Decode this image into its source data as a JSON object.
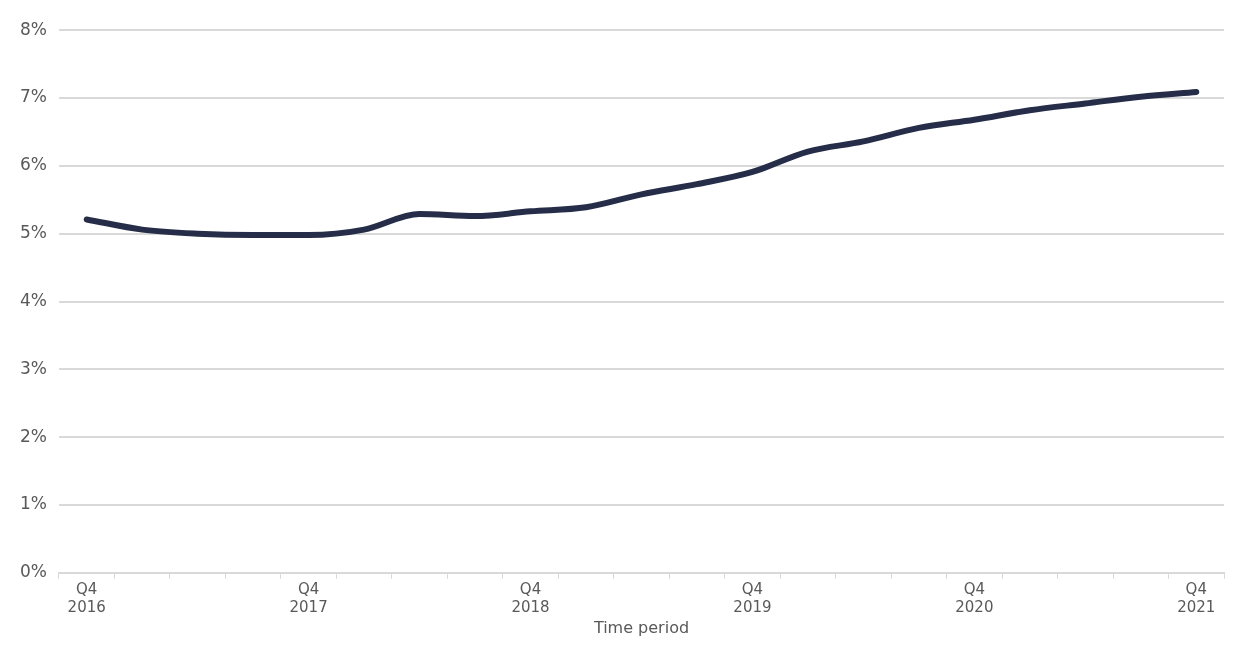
{
  "chart_data": {
    "type": "line",
    "xlabel": "Time period",
    "categories": [
      "Q4 2016",
      null,
      null,
      null,
      "Q4 2017",
      null,
      null,
      null,
      "Q4 2018",
      null,
      null,
      null,
      "Q4 2019",
      null,
      null,
      null,
      "Q4 2020",
      null,
      null,
      null,
      "Q4 2021"
    ],
    "series": [
      {
        "color": "#252d48",
        "values": [
          5.21,
          5.06,
          5.0,
          4.98,
          4.98,
          5.06,
          5.29,
          5.26,
          5.33,
          5.39,
          5.58,
          5.73,
          5.91,
          6.21,
          6.36,
          6.56,
          6.68,
          6.82,
          6.92,
          7.02,
          7.09
        ]
      }
    ],
    "ylim": [
      0,
      8
    ],
    "yticks": [
      {
        "value": 0,
        "label": "0%"
      },
      {
        "value": 1,
        "label": "1%"
      },
      {
        "value": 2,
        "label": "2%"
      },
      {
        "value": 3,
        "label": "3%"
      },
      {
        "value": 4,
        "label": "4%"
      },
      {
        "value": 5,
        "label": "5%"
      },
      {
        "value": 6,
        "label": "6%"
      },
      {
        "value": 7,
        "label": "7%"
      },
      {
        "value": 8,
        "label": "8%"
      }
    ],
    "grid": "y",
    "legend": false,
    "marker": "none",
    "line_style": "solid"
  }
}
